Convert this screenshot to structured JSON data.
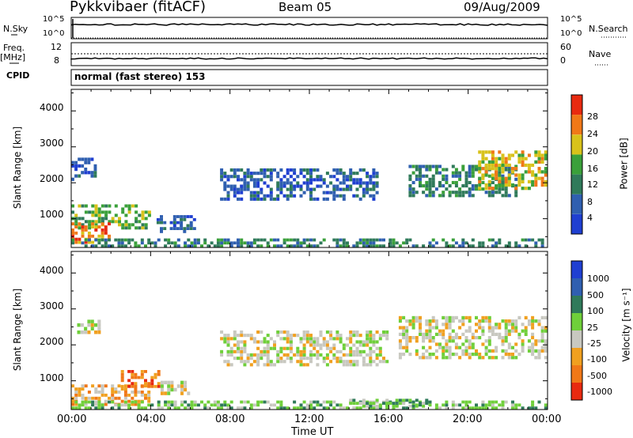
{
  "header": {
    "station": "Pykkvibaer (fitACF)",
    "beam": "Beam 05",
    "date": "09/Aug/2009"
  },
  "strip_labels": {
    "nsky": "N.Sky",
    "freq_top": "Freq.",
    "freq_unit": "[MHz]",
    "cpid": "CPID",
    "nsearch": "N.Search",
    "nave": "Nave",
    "cpid_value": "normal (fast stereo) 153",
    "nsky_ticks": [
      "10^5",
      "10^0"
    ],
    "nsearch_ticks": [
      "10^5",
      "10^0"
    ],
    "freq_ticks": [
      "12",
      "8"
    ],
    "nave_ticks": [
      "60",
      "0"
    ]
  },
  "chart_data": [
    {
      "type": "heatmap",
      "panel": "power",
      "xlabel": "",
      "ylabel": "Slant Range [km]",
      "ylim": [
        200,
        4600
      ],
      "yticks": [
        "1000",
        "2000",
        "3000",
        "4000"
      ],
      "colorbar_label": "Power [dB]",
      "colorbar_ticks": [
        "4",
        "8",
        "12",
        "16",
        "20",
        "24",
        "28"
      ],
      "colors": [
        "#1f3fd1",
        "#2f5fb0",
        "#2f7a5a",
        "#3aa03a",
        "#d8c21a",
        "#f07818",
        "#e82a10"
      ],
      "regions": [
        {
          "t": [
            0.0,
            1.3
          ],
          "r": [
            2050,
            2700
          ],
          "level": 1
        },
        {
          "t": [
            0.0,
            4.2
          ],
          "r": [
            700,
            1400
          ],
          "level": 3
        },
        {
          "t": [
            0.0,
            2.0
          ],
          "r": [
            300,
            900
          ],
          "level": 5
        },
        {
          "t": [
            4.3,
            6.3
          ],
          "r": [
            600,
            1100
          ],
          "level": 1
        },
        {
          "t": [
            0.0,
            24.0
          ],
          "r": [
            200,
            450
          ],
          "level": 2
        },
        {
          "t": [
            7.5,
            15.5
          ],
          "r": [
            1500,
            2400
          ],
          "level": 1
        },
        {
          "t": [
            17.0,
            22.5
          ],
          "r": [
            1600,
            2500
          ],
          "level": 2
        },
        {
          "t": [
            20.5,
            24.0
          ],
          "r": [
            1800,
            2900
          ],
          "level": 4
        }
      ]
    },
    {
      "type": "heatmap",
      "panel": "velocity",
      "xlabel": "Time UT",
      "ylabel": "Slant Range [km]",
      "ylim": [
        200,
        4600
      ],
      "xlim": [
        0,
        24
      ],
      "xticks": [
        "00:00",
        "04:00",
        "08:00",
        "12:00",
        "16:00",
        "20:00",
        "00:00"
      ],
      "yticks": [
        "1000",
        "2000",
        "3000",
        "4000"
      ],
      "colorbar_label": "Velocity [m s⁻¹]",
      "colorbar_ticks": [
        "1000",
        "500",
        "100",
        "25",
        "-25",
        "-100",
        "-500",
        "-1000"
      ],
      "colors": [
        "#1f3fd1",
        "#2f5fb0",
        "#2f7a5a",
        "#6fcf3a",
        "#c8c8c0",
        "#f0a020",
        "#f07818",
        "#e82a10"
      ],
      "regions": [
        {
          "t": [
            0.3,
            1.5
          ],
          "r": [
            2300,
            2700
          ],
          "level": 4
        },
        {
          "t": [
            0.0,
            4.0
          ],
          "r": [
            300,
            900
          ],
          "level": 5
        },
        {
          "t": [
            2.5,
            4.5
          ],
          "r": [
            800,
            1300
          ],
          "level": 6
        },
        {
          "t": [
            4.5,
            6.0
          ],
          "r": [
            600,
            1000
          ],
          "level": 4
        },
        {
          "t": [
            7.5,
            16.0
          ],
          "r": [
            1400,
            2400
          ],
          "level": 4
        },
        {
          "t": [
            16.5,
            24.0
          ],
          "r": [
            1600,
            2800
          ],
          "level": 4
        },
        {
          "t": [
            0.0,
            24.0
          ],
          "r": [
            200,
            450
          ],
          "level": 3
        },
        {
          "t": [
            14.0,
            18.0
          ],
          "r": [
            250,
            500
          ],
          "level": 3
        }
      ]
    }
  ]
}
